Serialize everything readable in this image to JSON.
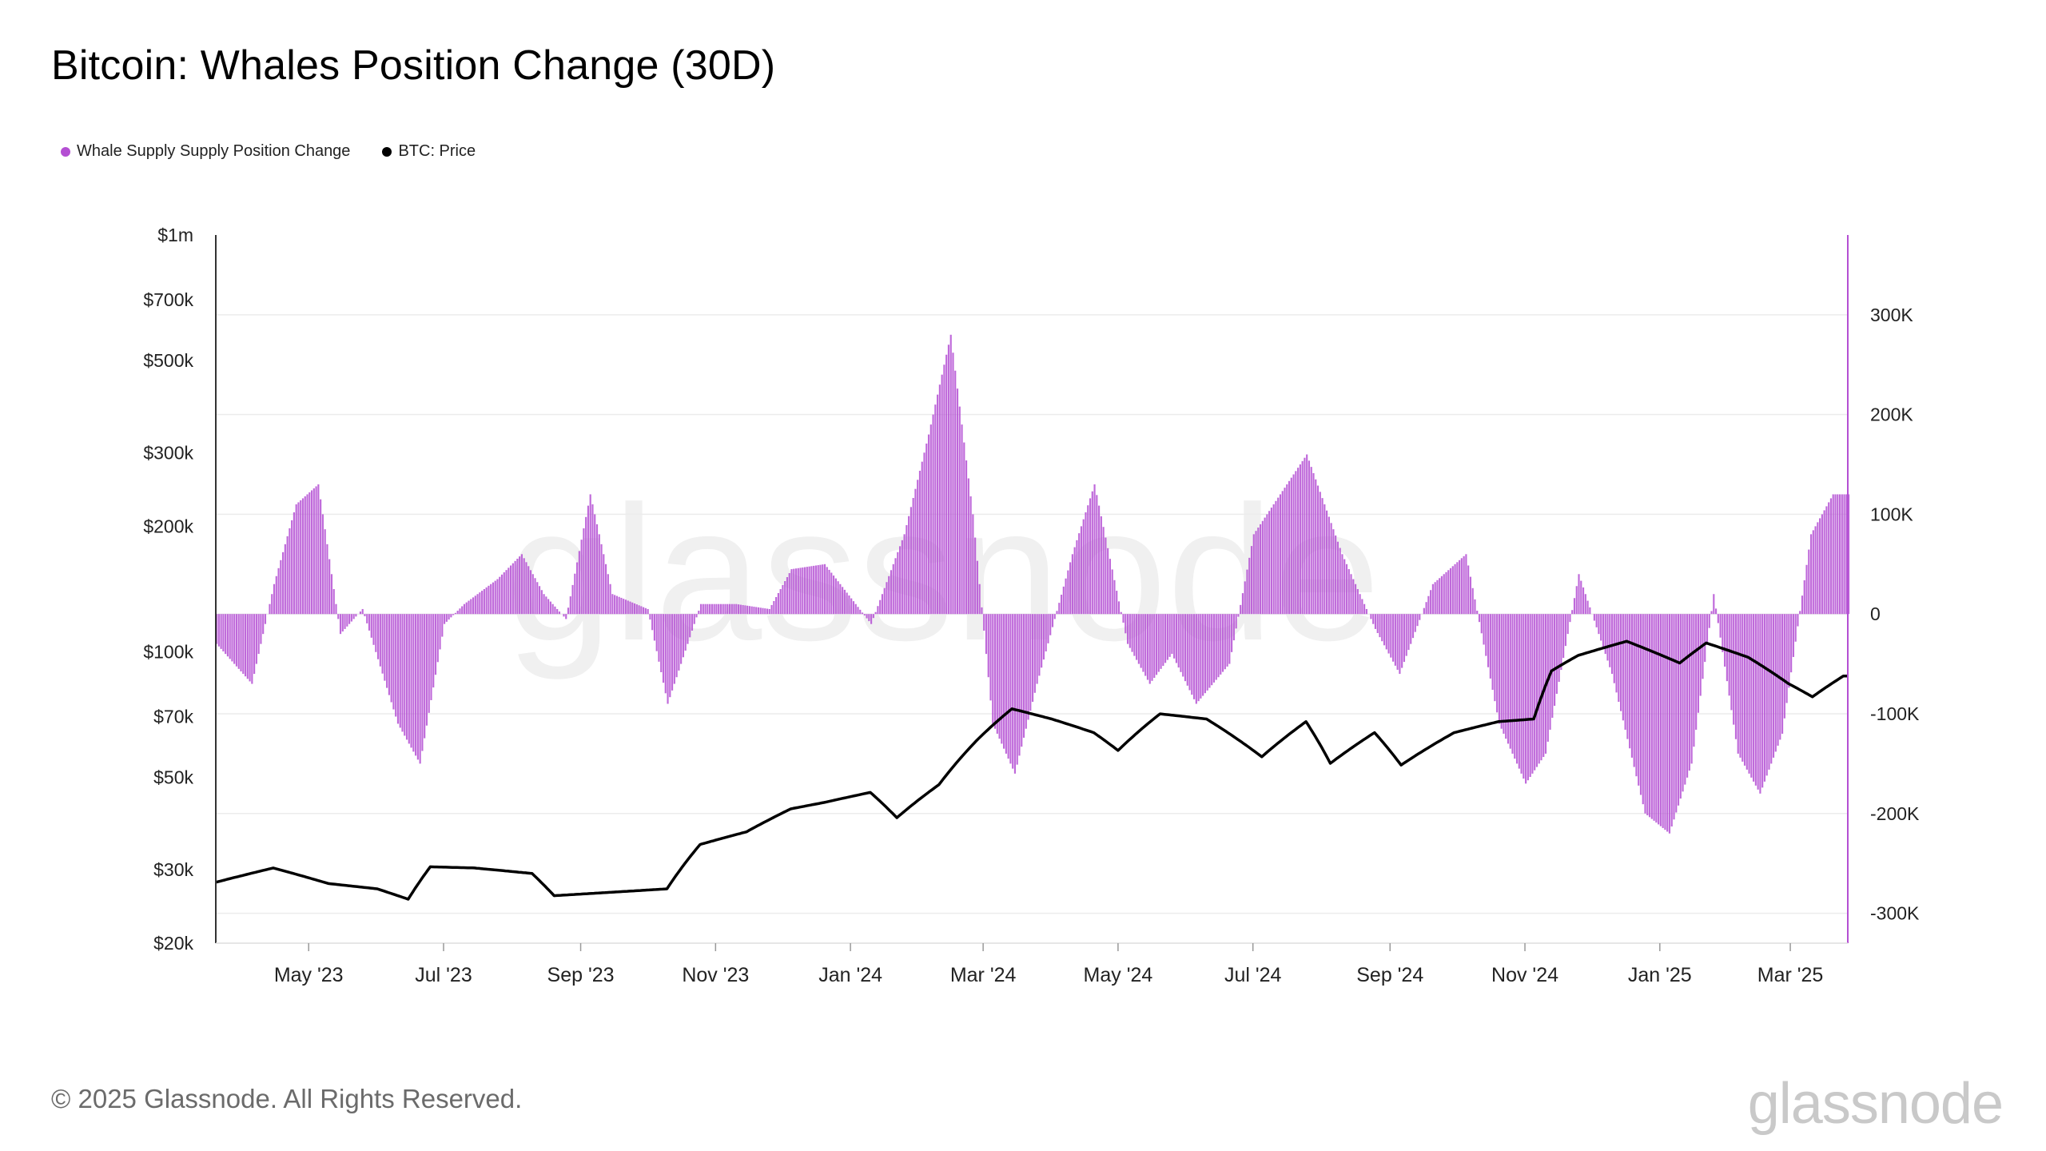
{
  "title": "Bitcoin: Whales Position Change (30D)",
  "legend": [
    {
      "label": "Whale Supply Supply Position Change",
      "color": "#b44fd3"
    },
    {
      "label": "BTC: Price",
      "color": "#000000"
    }
  ],
  "footer": {
    "copyright": "© 2025 Glassnode. All Rights Reserved.",
    "brand": "glassnode",
    "watermark": "glassnode"
  },
  "chart_data": {
    "type": "bar",
    "left_axis": {
      "label": "",
      "scale": "log",
      "ticks": [
        "$1m",
        "$700k",
        "$500k",
        "$300k",
        "$200k",
        "$100k",
        "$70k",
        "$50k",
        "$30k",
        "$20k"
      ],
      "tick_values": [
        1000000,
        700000,
        500000,
        300000,
        200000,
        100000,
        70000,
        50000,
        30000,
        20000
      ],
      "range": [
        20000,
        1000000
      ]
    },
    "right_axis": {
      "label": "",
      "scale": "linear",
      "ticks": [
        "300K",
        "200K",
        "100K",
        "0",
        "-100K",
        "-200K",
        "-300K"
      ],
      "tick_values": [
        300000,
        200000,
        100000,
        0,
        -100000,
        -200000,
        -300000
      ],
      "range": [
        -330000,
        380000
      ]
    },
    "x_axis": {
      "ticks": [
        "May '23",
        "Jul '23",
        "Sep '23",
        "Nov '23",
        "Jan '24",
        "Mar '24",
        "May '24",
        "Jul '24",
        "Sep '24",
        "Nov '24",
        "Jan '25",
        "Mar '25"
      ],
      "range": [
        "2023-03-20",
        "2025-03-27"
      ]
    },
    "series": [
      {
        "name": "Whale Supply Supply Position Change",
        "type": "bar",
        "axis": "right",
        "color": "#b44fd3",
        "points": [
          [
            "2023-03-20",
            -30000
          ],
          [
            "2023-04-05",
            -70000
          ],
          [
            "2023-04-15",
            30000
          ],
          [
            "2023-04-25",
            110000
          ],
          [
            "2023-05-05",
            130000
          ],
          [
            "2023-05-15",
            -20000
          ],
          [
            "2023-05-25",
            5000
          ],
          [
            "2023-06-10",
            -110000
          ],
          [
            "2023-06-20",
            -150000
          ],
          [
            "2023-07-01",
            -10000
          ],
          [
            "2023-07-10",
            10000
          ],
          [
            "2023-07-25",
            35000
          ],
          [
            "2023-08-05",
            60000
          ],
          [
            "2023-08-15",
            20000
          ],
          [
            "2023-08-25",
            -5000
          ],
          [
            "2023-09-05",
            120000
          ],
          [
            "2023-09-15",
            20000
          ],
          [
            "2023-10-01",
            5000
          ],
          [
            "2023-10-10",
            -90000
          ],
          [
            "2023-10-25",
            10000
          ],
          [
            "2023-11-10",
            10000
          ],
          [
            "2023-11-25",
            5000
          ],
          [
            "2023-12-05",
            45000
          ],
          [
            "2023-12-20",
            50000
          ],
          [
            "2024-01-10",
            -10000
          ],
          [
            "2024-01-25",
            80000
          ],
          [
            "2024-02-05",
            180000
          ],
          [
            "2024-02-15",
            280000
          ],
          [
            "2024-02-25",
            100000
          ],
          [
            "2024-03-05",
            -110000
          ],
          [
            "2024-03-15",
            -160000
          ],
          [
            "2024-03-25",
            -70000
          ],
          [
            "2024-04-10",
            60000
          ],
          [
            "2024-04-20",
            130000
          ],
          [
            "2024-05-05",
            -30000
          ],
          [
            "2024-05-15",
            -70000
          ],
          [
            "2024-05-25",
            -40000
          ],
          [
            "2024-06-05",
            -90000
          ],
          [
            "2024-06-20",
            -50000
          ],
          [
            "2024-07-01",
            80000
          ],
          [
            "2024-07-10",
            110000
          ],
          [
            "2024-07-25",
            160000
          ],
          [
            "2024-08-10",
            60000
          ],
          [
            "2024-08-25",
            -15000
          ],
          [
            "2024-09-05",
            -60000
          ],
          [
            "2024-09-20",
            30000
          ],
          [
            "2024-10-05",
            60000
          ],
          [
            "2024-10-20",
            -110000
          ],
          [
            "2024-11-01",
            -170000
          ],
          [
            "2024-11-10",
            -140000
          ],
          [
            "2024-11-25",
            40000
          ],
          [
            "2024-12-10",
            -60000
          ],
          [
            "2024-12-25",
            -200000
          ],
          [
            "2025-01-05",
            -220000
          ],
          [
            "2025-01-15",
            -150000
          ],
          [
            "2025-01-25",
            20000
          ],
          [
            "2025-02-05",
            -140000
          ],
          [
            "2025-02-15",
            -180000
          ],
          [
            "2025-02-25",
            -120000
          ],
          [
            "2025-03-10",
            80000
          ],
          [
            "2025-03-20",
            120000
          ]
        ]
      },
      {
        "name": "BTC: Price",
        "type": "line",
        "axis": "left",
        "color": "#000000",
        "points": [
          [
            "2023-03-20",
            28000
          ],
          [
            "2023-04-15",
            30300
          ],
          [
            "2023-05-10",
            27800
          ],
          [
            "2023-06-01",
            27000
          ],
          [
            "2023-06-15",
            25500
          ],
          [
            "2023-06-25",
            30500
          ],
          [
            "2023-07-15",
            30300
          ],
          [
            "2023-08-10",
            29400
          ],
          [
            "2023-08-20",
            26000
          ],
          [
            "2023-09-15",
            26500
          ],
          [
            "2023-10-10",
            27000
          ],
          [
            "2023-10-25",
            34500
          ],
          [
            "2023-11-15",
            37000
          ],
          [
            "2023-12-05",
            42000
          ],
          [
            "2023-12-20",
            43500
          ],
          [
            "2024-01-10",
            46000
          ],
          [
            "2024-01-22",
            40000
          ],
          [
            "2024-02-10",
            48000
          ],
          [
            "2024-02-28",
            62000
          ],
          [
            "2024-03-14",
            73000
          ],
          [
            "2024-04-01",
            69000
          ],
          [
            "2024-04-20",
            64000
          ],
          [
            "2024-05-01",
            58000
          ],
          [
            "2024-05-20",
            71000
          ],
          [
            "2024-06-10",
            69000
          ],
          [
            "2024-07-05",
            56000
          ],
          [
            "2024-07-25",
            68000
          ],
          [
            "2024-08-05",
            54000
          ],
          [
            "2024-08-25",
            64000
          ],
          [
            "2024-09-06",
            53500
          ],
          [
            "2024-09-30",
            64000
          ],
          [
            "2024-10-20",
            68000
          ],
          [
            "2024-11-05",
            69000
          ],
          [
            "2024-11-13",
            90000
          ],
          [
            "2024-11-25",
            98000
          ],
          [
            "2024-12-17",
            106000
          ],
          [
            "2025-01-10",
            94000
          ],
          [
            "2025-01-22",
            105000
          ],
          [
            "2025-02-10",
            97000
          ],
          [
            "2025-02-28",
            84000
          ],
          [
            "2025-03-11",
            78000
          ],
          [
            "2025-03-25",
            87500
          ]
        ]
      }
    ],
    "grid": true,
    "legend_position": "top-left"
  }
}
